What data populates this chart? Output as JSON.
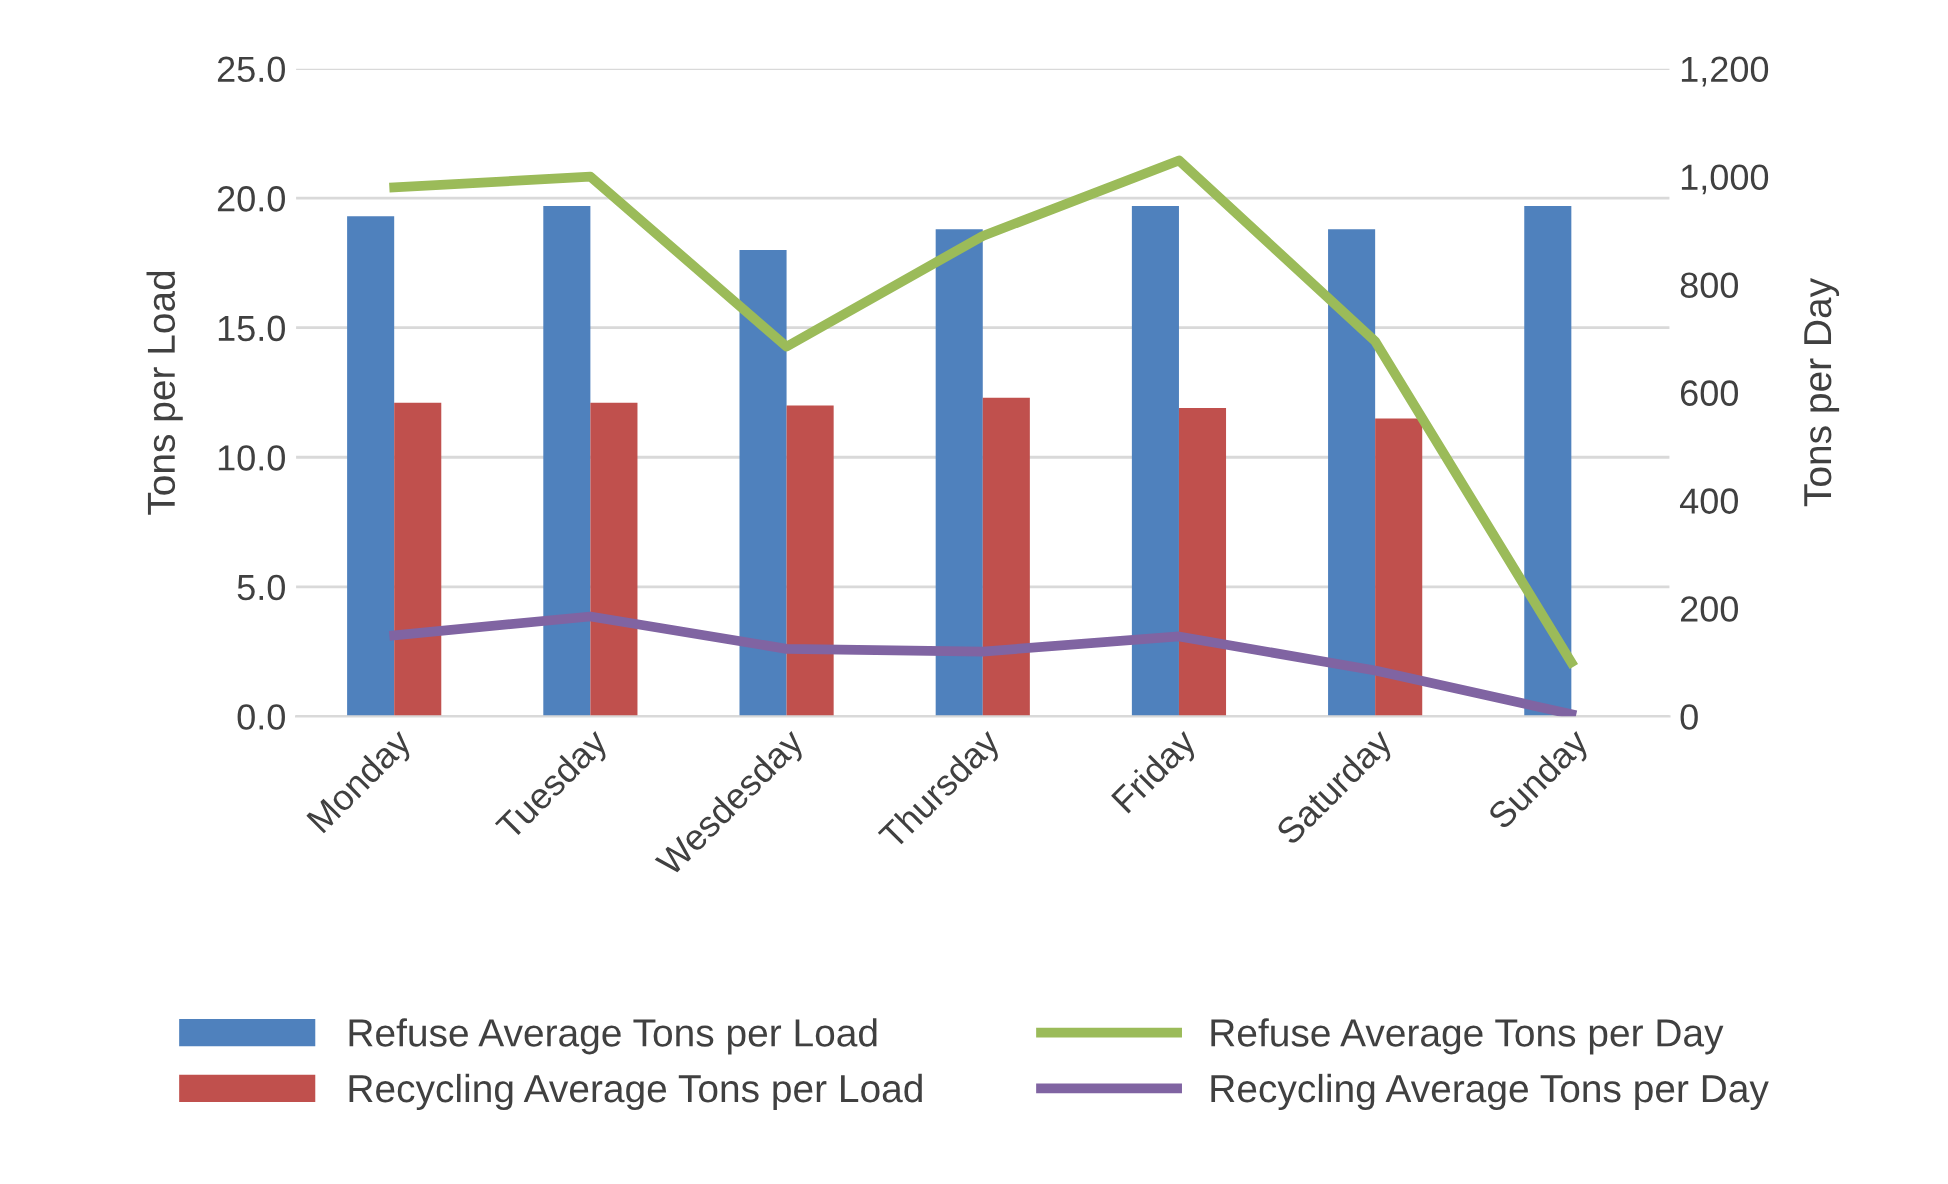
{
  "chart_data": {
    "type": "bar",
    "categories": [
      "Monday",
      "Tuesday",
      "Wesdesday",
      "Thursday",
      "Friday",
      "Saturday",
      "Sunday"
    ],
    "ylabel": "Tons per Load",
    "y2label": "Tons per Day",
    "ylim": [
      0,
      25
    ],
    "yticks": [
      {
        "value": 0,
        "label": "0.0"
      },
      {
        "value": 5,
        "label": "5.0"
      },
      {
        "value": 10,
        "label": "10.0"
      },
      {
        "value": 15,
        "label": "15.0"
      },
      {
        "value": 20,
        "label": "20.0"
      },
      {
        "value": 25,
        "label": "25.0"
      }
    ],
    "y2lim": [
      0,
      1200
    ],
    "y2ticks": [
      0,
      200,
      400,
      600,
      800,
      {
        "value": 1000,
        "label": "1,000"
      },
      {
        "value": 1200,
        "label": "1,200"
      }
    ],
    "grid": "y",
    "legend": "bottom",
    "series": [
      {
        "name": "Refuse Average Tons per Load",
        "color": "#4f81bd",
        "values": [
          19.3,
          19.7,
          18.0,
          18.8,
          19.7,
          18.8,
          19.7
        ]
      },
      {
        "name": "Recycling Average Tons per Load",
        "color": "#c0504d",
        "values": [
          12.1,
          12.1,
          12.0,
          12.3,
          11.9,
          11.5,
          null
        ]
      },
      {
        "name": "Refuse Average Tons per Day",
        "type": "line",
        "axis": "y2",
        "color": "#9bbb59",
        "values": [
          980,
          1000,
          685,
          890,
          1030,
          695,
          100
        ]
      },
      {
        "name": "Recycling Average Tons per Day",
        "type": "line",
        "axis": "y2",
        "color": "#8064a2",
        "values": [
          150,
          185,
          125,
          120,
          148,
          85,
          4
        ]
      }
    ]
  }
}
